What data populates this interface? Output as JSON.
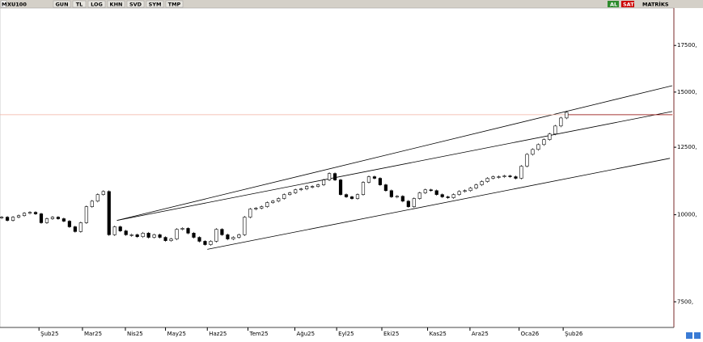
{
  "toolbar": {
    "symbol_marker": "M",
    "symbol": "XU100",
    "buttons": [
      "GUN",
      "TL",
      "LOG",
      "KHN",
      "SVD",
      "SYM",
      "TMP"
    ],
    "buy": "AL",
    "sell": "SAT",
    "brand": "MATRİKS"
  },
  "chart_data": {
    "type": "candlestick",
    "log_scale": true,
    "color": "#000000",
    "values": [
      9920,
      9815,
      9920,
      9970,
      10050,
      10080,
      10030,
      9740,
      9870,
      9920,
      9870,
      9790,
      9610,
      9460,
      9740,
      10270,
      10460,
      10690,
      10800,
      9360,
      9610,
      9480,
      9360,
      9360,
      9300,
      9410,
      9280,
      9360,
      9280,
      9180,
      9230,
      9530,
      9560,
      9410,
      9280,
      9160,
      9060,
      9160,
      9530,
      9360,
      9230,
      9280,
      9360,
      9920,
      10190,
      10220,
      10270,
      10410,
      10460,
      10550,
      10690,
      10750,
      10860,
      10890,
      10980,
      10980,
      11040,
      11220,
      11460,
      11220,
      10690,
      10610,
      10550,
      10690,
      11130,
      11340,
      11280,
      11040,
      10830,
      10610,
      10630,
      10460,
      10270,
      10550,
      10750,
      10860,
      10830,
      10690,
      10610,
      10580,
      10690,
      10800,
      10830,
      10920,
      11040,
      11160,
      11280,
      11340,
      11340,
      11370,
      11340,
      11280,
      11740,
      12210,
      12410,
      12610,
      12820,
      13060,
      13410,
      13770,
      14030
    ],
    "ylim": [
      6890,
      19800
    ],
    "yticks": [
      {
        "value": 7500,
        "label": "7500,"
      },
      {
        "value": 10000,
        "label": "10000,"
      },
      {
        "value": 12500,
        "label": "12500,"
      },
      {
        "value": 15000,
        "label": "15000,"
      },
      {
        "value": 17500,
        "label": "17500,"
      }
    ],
    "xlim": [
      -0.3,
      119
    ],
    "xticks": [
      {
        "value": 6.6,
        "label": "Şub25"
      },
      {
        "value": 14.3,
        "label": "Mar25"
      },
      {
        "value": 21.9,
        "label": "Nis25"
      },
      {
        "value": 29,
        "label": "May25"
      },
      {
        "value": 36.4,
        "label": "Haz25"
      },
      {
        "value": 43.6,
        "label": "Tem25"
      },
      {
        "value": 51.9,
        "label": "Ağu25"
      },
      {
        "value": 59.3,
        "label": "Eyl25"
      },
      {
        "value": 67.3,
        "label": "Eki25"
      },
      {
        "value": 75.4,
        "label": "Kas25"
      },
      {
        "value": 82.9,
        "label": "Ara25"
      },
      {
        "value": 91.6,
        "label": "Oca26"
      },
      {
        "value": 99.4,
        "label": "Şub26"
      }
    ],
    "trendlines": [
      {
        "x": [
          20.4,
          118.7
        ],
        "y": [
          9815,
          15320
        ],
        "color": "#000000"
      },
      {
        "x": [
          20.4,
          118.7
        ],
        "y": [
          9815,
          14070
        ],
        "color": "#000000"
      },
      {
        "x": [
          36.4,
          118.3
        ],
        "y": [
          8920,
          12050
        ],
        "color": "#000000"
      },
      {
        "x": [
          -0.3,
          119
        ],
        "y": [
          13920,
          13920
        ],
        "color": "#f0b0a0"
      },
      {
        "x": [
          99.7,
          118.7
        ],
        "y": [
          13920,
          13920
        ],
        "color": "#8b0000"
      }
    ]
  }
}
